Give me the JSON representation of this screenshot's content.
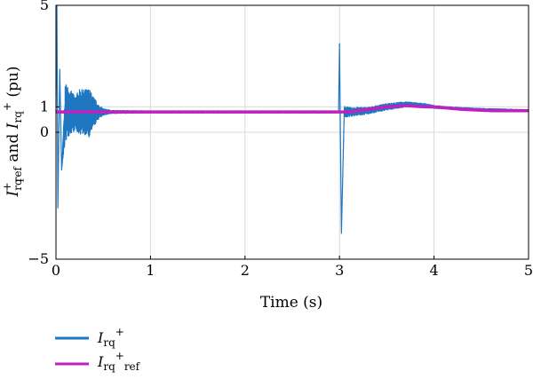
{
  "chart_data": {
    "type": "line",
    "xlabel": "Time (s)",
    "ylabel": {
      "main": "I",
      "sub1": "rq",
      "sup1": "+",
      "sub1b": "ref",
      "mid": " and ",
      "main2": "I",
      "sub2": "rq",
      "sup2": "+",
      "tail": " (pu)"
    },
    "xlim": [
      0,
      5
    ],
    "ylim": [
      -5,
      5
    ],
    "xticks": [
      0,
      1,
      2,
      3,
      4,
      5
    ],
    "yticks": [
      -5,
      0,
      1,
      5
    ],
    "xtick_labels": [
      "0",
      "1",
      "2",
      "3",
      "4",
      "5"
    ],
    "ytick_labels": [
      "−5",
      "0",
      "1",
      "5"
    ],
    "grid": true,
    "legend_position": "bottom-left, below plot",
    "series": [
      {
        "legend": {
          "main": "I",
          "sub": "rq",
          "sup": "+"
        },
        "color": "#1f77c2",
        "style": "noisy",
        "x": [
          0,
          0.01,
          0.02,
          0.04,
          0.06,
          0.1,
          0.15,
          0.2,
          0.25,
          0.3,
          0.35,
          0.4,
          0.45,
          0.5,
          0.6,
          1.0,
          2.0,
          2.99,
          3.0,
          3.02,
          3.05,
          3.1,
          3.3,
          3.5,
          3.7,
          3.9,
          4.0,
          4.2,
          4.5,
          5.0
        ],
        "values": [
          0.8,
          5.0,
          -3.0,
          2.5,
          -1.5,
          0.8,
          0.8,
          0.75,
          0.8,
          0.8,
          0.75,
          0.8,
          0.8,
          0.8,
          0.8,
          0.8,
          0.8,
          0.8,
          3.5,
          -4.0,
          0.8,
          0.8,
          0.85,
          1.0,
          1.1,
          1.05,
          1.0,
          0.95,
          0.9,
          0.85
        ],
        "band": [
          0,
          0,
          0,
          0,
          0,
          1.2,
          0.9,
          0.7,
          0.9,
          0.9,
          1.0,
          0.6,
          0.3,
          0.15,
          0.08,
          0.06,
          0.06,
          0.06,
          0,
          0,
          0.25,
          0.2,
          0.15,
          0.15,
          0.12,
          0.1,
          0.08,
          0.06,
          0.06,
          0.06
        ]
      },
      {
        "legend": {
          "main": "I",
          "sub": "rq",
          "sup": "+",
          "sub2": "ref"
        },
        "color": "#c020c0",
        "style": "smooth",
        "x": [
          0,
          3.0,
          3.1,
          3.3,
          3.5,
          3.7,
          3.9,
          4.0,
          4.3,
          4.6,
          5.0
        ],
        "values": [
          0.8,
          0.8,
          0.8,
          0.9,
          1.0,
          1.05,
          1.0,
          1.0,
          0.9,
          0.85,
          0.85
        ]
      }
    ]
  }
}
